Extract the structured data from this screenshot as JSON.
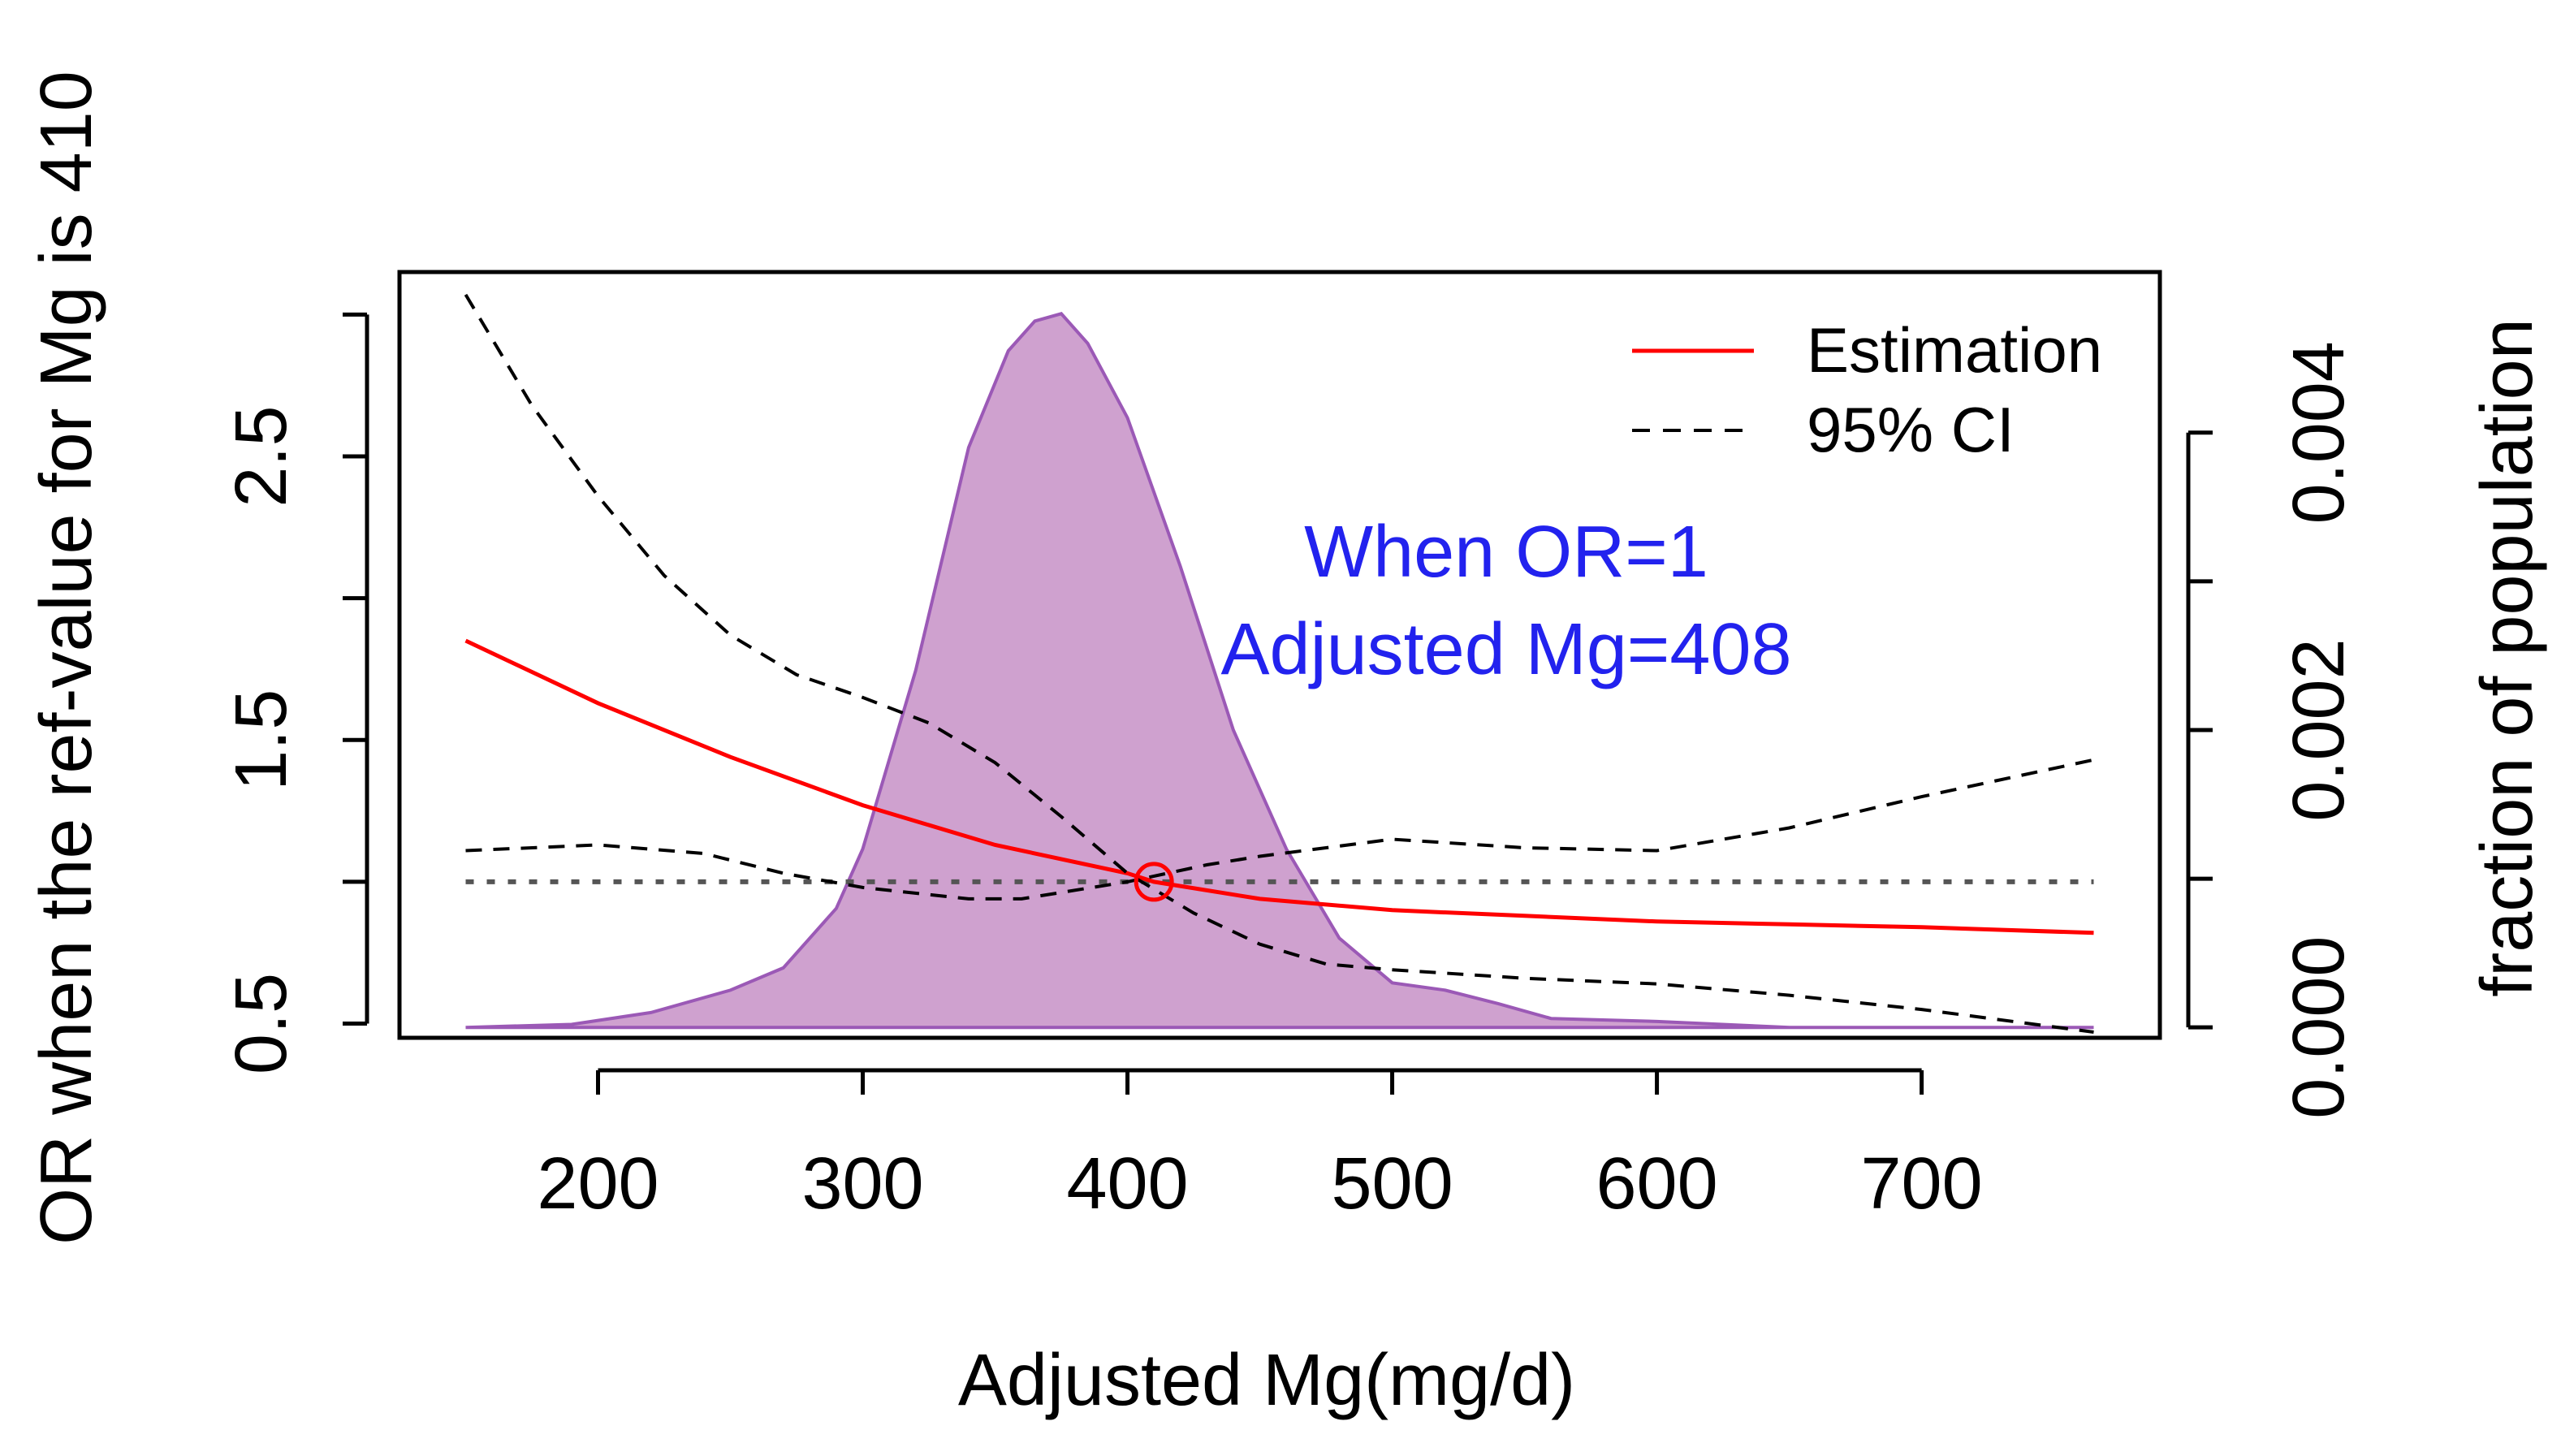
{
  "chart_data": {
    "type": "line",
    "xlabel": "Adjusted Mg(mg/d)",
    "ylabel": "OR when the ref-value for Mg is 410",
    "y2label": "fraction of population",
    "xlim": [
      125,
      790
    ],
    "ylim": [
      0.45,
      3.15
    ],
    "y2lim": [
      -7e-05,
      0.00508
    ],
    "xticks": [
      200,
      300,
      400,
      500,
      600,
      700
    ],
    "yticks": [
      0.5,
      1.0,
      1.5,
      2.0,
      2.5,
      3.0
    ],
    "yticklabels": [
      "0.5",
      "",
      "1.5",
      "",
      "2.5",
      ""
    ],
    "y2ticks": [
      0,
      0.001,
      0.002,
      0.003,
      0.004
    ],
    "y2ticklabels": [
      "0.000",
      "",
      "0.002",
      "",
      "0.004"
    ],
    "reference_line": {
      "y": 1.0,
      "style": "dotted",
      "color": "#555555"
    },
    "series": [
      {
        "name": "Estimation",
        "style": "solid",
        "color": "#ff0000",
        "x": [
          150,
          200,
          250,
          300,
          350,
          400,
          410,
          450,
          500,
          550,
          600,
          650,
          700,
          765
        ],
        "y": [
          1.85,
          1.63,
          1.44,
          1.27,
          1.13,
          1.03,
          1.0,
          0.94,
          0.9,
          0.88,
          0.86,
          0.85,
          0.84,
          0.82
        ]
      },
      {
        "name": "95% CI upper",
        "style": "dashed",
        "color": "#000000",
        "x": [
          150,
          175,
          200,
          225,
          250,
          275,
          300,
          325,
          350,
          375,
          400,
          425,
          450,
          475,
          500,
          550,
          600,
          650,
          700,
          765
        ],
        "y": [
          3.07,
          2.68,
          2.36,
          2.08,
          1.87,
          1.73,
          1.65,
          1.56,
          1.42,
          1.23,
          1.03,
          0.89,
          0.78,
          0.71,
          0.69,
          0.66,
          0.64,
          0.6,
          0.55,
          0.47
        ]
      },
      {
        "name": "95% CI lower",
        "style": "dashed",
        "color": "#000000",
        "x": [
          150,
          200,
          240,
          270,
          300,
          340,
          360,
          400,
          430,
          450,
          500,
          550,
          600,
          650,
          700,
          765
        ],
        "y": [
          1.11,
          1.13,
          1.1,
          1.03,
          0.98,
          0.94,
          0.94,
          1.0,
          1.06,
          1.09,
          1.15,
          1.12,
          1.11,
          1.19,
          1.3,
          1.43
        ]
      }
    ],
    "density": {
      "name": "fraction of population",
      "axis": "y2",
      "color": "#cfa1cf",
      "edge_color": "#9b59b6",
      "x": [
        150,
        190,
        220,
        250,
        270,
        290,
        300,
        320,
        340,
        355,
        365,
        375,
        385,
        400,
        420,
        440,
        460,
        480,
        500,
        520,
        540,
        560,
        600,
        650,
        700,
        765
      ],
      "y": [
        0.0,
        2e-05,
        0.0001,
        0.00025,
        0.0004,
        0.0008,
        0.0012,
        0.0024,
        0.0039,
        0.00455,
        0.00475,
        0.0048,
        0.0046,
        0.0041,
        0.0031,
        0.002,
        0.0012,
        0.0006,
        0.0003,
        0.00025,
        0.00016,
        6e-05,
        4e-05,
        0.0,
        0.0,
        0.0
      ]
    },
    "marker": {
      "x": 410,
      "y": 1.0,
      "shape": "circle",
      "color": "#ff0000"
    },
    "legend": {
      "position": "top-right",
      "entries": [
        {
          "label": "Estimation",
          "color": "#ff0000",
          "style": "solid"
        },
        {
          "label": "95% CI",
          "color": "#000000",
          "style": "dashed"
        }
      ]
    },
    "annotation": {
      "lines": [
        "When OR=1",
        "Adjusted Mg=408"
      ],
      "color": "#2222ee"
    }
  }
}
